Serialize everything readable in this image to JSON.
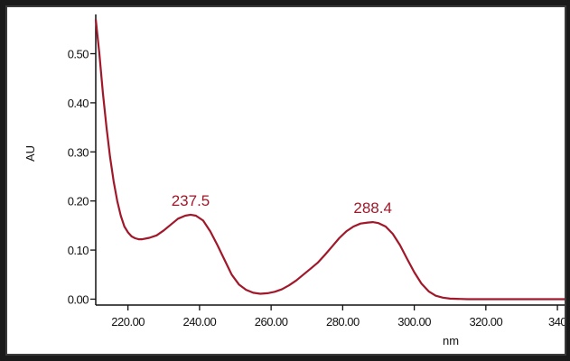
{
  "chart_data": {
    "type": "line",
    "title": "",
    "xlabel": "nm",
    "ylabel": "AU",
    "xlim": [
      211,
      342
    ],
    "ylim": [
      -0.012,
      0.58
    ],
    "x_ticks": [
      220,
      240,
      260,
      280,
      300,
      320,
      340
    ],
    "x_tick_labels": [
      "220.00",
      "240.00",
      "260.00",
      "280.00",
      "300.00",
      "320.00",
      "340"
    ],
    "y_ticks": [
      0.0,
      0.1,
      0.2,
      0.3,
      0.4,
      0.5
    ],
    "y_tick_labels": [
      "0.00",
      "0.10",
      "0.20",
      "0.30",
      "0.40",
      "0.50"
    ],
    "grid": false,
    "line_color": "#a0182a",
    "series": [
      {
        "x": [
          211,
          212,
          213,
          214,
          215,
          216,
          217,
          218,
          219,
          220,
          221,
          222,
          223,
          224,
          226,
          228,
          230,
          232,
          234,
          236,
          237.5,
          239,
          241,
          243,
          245,
          247,
          249,
          251,
          253,
          255,
          257,
          259,
          261,
          263,
          265,
          267,
          269,
          271,
          273,
          275,
          277,
          279,
          281,
          283,
          285,
          287,
          288.4,
          290,
          292,
          294,
          296,
          298,
          300,
          302,
          304,
          306,
          308,
          310,
          315,
          320,
          330,
          342
        ],
        "values": [
          0.57,
          0.5,
          0.42,
          0.35,
          0.29,
          0.24,
          0.2,
          0.17,
          0.148,
          0.136,
          0.128,
          0.124,
          0.122,
          0.122,
          0.125,
          0.13,
          0.14,
          0.152,
          0.164,
          0.17,
          0.172,
          0.17,
          0.16,
          0.138,
          0.11,
          0.08,
          0.05,
          0.03,
          0.019,
          0.013,
          0.011,
          0.012,
          0.015,
          0.02,
          0.028,
          0.038,
          0.05,
          0.062,
          0.074,
          0.09,
          0.107,
          0.124,
          0.138,
          0.148,
          0.154,
          0.156,
          0.157,
          0.155,
          0.148,
          0.133,
          0.11,
          0.082,
          0.055,
          0.032,
          0.016,
          0.007,
          0.003,
          0.001,
          0.0,
          0.0,
          0.0,
          0.0
        ]
      }
    ],
    "annotations": [
      {
        "text": "237.5",
        "x": 237.5,
        "y": 0.172
      },
      {
        "text": "288.4",
        "x": 288.4,
        "y": 0.157
      }
    ]
  }
}
